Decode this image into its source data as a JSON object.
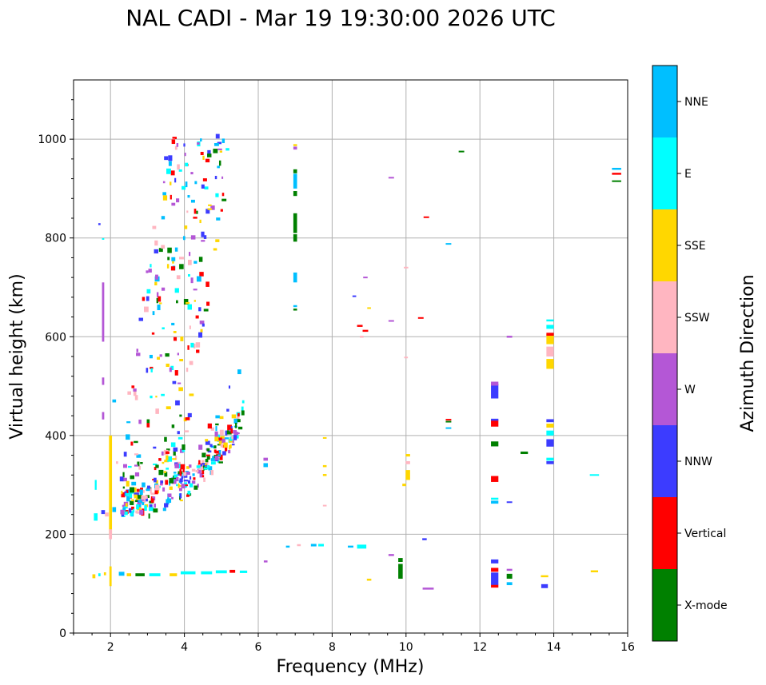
{
  "chart_data": {
    "type": "scatter",
    "title": "NAL CADI - Mar 19 19:30:00 2026 UTC",
    "xlabel": "Frequency (MHz)",
    "ylabel": "Virtual height (km)",
    "xlim": [
      1,
      16
    ],
    "ylim": [
      0,
      1120
    ],
    "xticks": [
      2,
      4,
      6,
      8,
      10,
      12,
      14,
      16
    ],
    "yticks": [
      0,
      200,
      400,
      600,
      800,
      1000
    ],
    "grid": true,
    "colorbar": {
      "label": "Azimuth Direction",
      "categories": [
        {
          "name": "X-mode",
          "color": "#008000"
        },
        {
          "name": "Vertical",
          "color": "#ff0000"
        },
        {
          "name": "NNW",
          "color": "#3c3cff"
        },
        {
          "name": "W",
          "color": "#b457d6"
        },
        {
          "name": "SSW",
          "color": "#ffb6c1"
        },
        {
          "name": "SSE",
          "color": "#ffd700"
        },
        {
          "name": "E",
          "color": "#00ffff"
        },
        {
          "name": "NNE",
          "color": "#00bfff"
        }
      ]
    },
    "points": [
      {
        "f": 1.55,
        "h": 115,
        "c": "SSE",
        "w": 0.08,
        "dh": 8
      },
      {
        "f": 1.7,
        "h": 118,
        "c": "E",
        "w": 0.06,
        "dh": 6
      },
      {
        "f": 1.85,
        "h": 120,
        "c": "SSE",
        "w": 0.06,
        "dh": 6
      },
      {
        "f": 2.0,
        "h": 115,
        "c": "SSE",
        "w": 0.06,
        "dh": 40
      },
      {
        "f": 2.3,
        "h": 120,
        "c": "NNE",
        "w": 0.15,
        "dh": 8
      },
      {
        "f": 2.5,
        "h": 118,
        "c": "SSE",
        "w": 0.12,
        "dh": 6
      },
      {
        "f": 2.8,
        "h": 118,
        "c": "X-mode",
        "w": 0.25,
        "dh": 6
      },
      {
        "f": 3.2,
        "h": 118,
        "c": "E",
        "w": 0.3,
        "dh": 6
      },
      {
        "f": 3.7,
        "h": 118,
        "c": "SSE",
        "w": 0.2,
        "dh": 6
      },
      {
        "f": 4.1,
        "h": 122,
        "c": "E",
        "w": 0.4,
        "dh": 6
      },
      {
        "f": 4.6,
        "h": 122,
        "c": "E",
        "w": 0.3,
        "dh": 6
      },
      {
        "f": 5.0,
        "h": 124,
        "c": "E",
        "w": 0.3,
        "dh": 6
      },
      {
        "f": 5.3,
        "h": 125,
        "c": "Vertical",
        "w": 0.15,
        "dh": 6
      },
      {
        "f": 5.6,
        "h": 124,
        "c": "E",
        "w": 0.2,
        "dh": 5
      },
      {
        "f": 6.2,
        "h": 145,
        "c": "W",
        "w": 0.1,
        "dh": 4
      },
      {
        "f": 6.8,
        "h": 175,
        "c": "NNE",
        "w": 0.1,
        "dh": 4
      },
      {
        "f": 7.1,
        "h": 178,
        "c": "SSW",
        "w": 0.1,
        "dh": 4
      },
      {
        "f": 7.5,
        "h": 178,
        "c": "NNE",
        "w": 0.15,
        "dh": 5
      },
      {
        "f": 7.7,
        "h": 178,
        "c": "E",
        "w": 0.15,
        "dh": 5
      },
      {
        "f": 8.5,
        "h": 175,
        "c": "NNE",
        "w": 0.15,
        "dh": 4
      },
      {
        "f": 8.8,
        "h": 175,
        "c": "E",
        "w": 0.25,
        "dh": 8
      },
      {
        "f": 9.6,
        "h": 158,
        "c": "W",
        "w": 0.15,
        "dh": 4
      },
      {
        "f": 9.0,
        "h": 108,
        "c": "SSE",
        "w": 0.12,
        "dh": 4
      },
      {
        "f": 9.85,
        "h": 125,
        "c": "X-mode",
        "w": 0.12,
        "dh": 30
      },
      {
        "f": 9.85,
        "h": 148,
        "c": "X-mode",
        "w": 0.12,
        "dh": 8
      },
      {
        "f": 10.6,
        "h": 90,
        "c": "W",
        "w": 0.3,
        "dh": 4
      },
      {
        "f": 10.5,
        "h": 190,
        "c": "NNW",
        "w": 0.12,
        "dh": 4
      },
      {
        "f": 12.4,
        "h": 95,
        "c": "Vertical",
        "w": 0.2,
        "dh": 6
      },
      {
        "f": 12.4,
        "h": 110,
        "c": "NNW",
        "w": 0.2,
        "dh": 25
      },
      {
        "f": 12.4,
        "h": 128,
        "c": "Vertical",
        "w": 0.2,
        "dh": 8
      },
      {
        "f": 12.4,
        "h": 145,
        "c": "NNW",
        "w": 0.2,
        "dh": 8
      },
      {
        "f": 12.8,
        "h": 100,
        "c": "NNE",
        "w": 0.15,
        "dh": 6
      },
      {
        "f": 12.8,
        "h": 115,
        "c": "X-mode",
        "w": 0.15,
        "dh": 10
      },
      {
        "f": 12.8,
        "h": 128,
        "c": "W",
        "w": 0.15,
        "dh": 4
      },
      {
        "f": 13.75,
        "h": 95,
        "c": "NNW",
        "w": 0.18,
        "dh": 8
      },
      {
        "f": 13.75,
        "h": 115,
        "c": "SSE",
        "w": 0.2,
        "dh": 4
      },
      {
        "f": 15.1,
        "h": 125,
        "c": "SSE",
        "w": 0.2,
        "dh": 4
      },
      {
        "f": 12.4,
        "h": 265,
        "c": "NNE",
        "w": 0.2,
        "dh": 6
      },
      {
        "f": 12.4,
        "h": 272,
        "c": "E",
        "w": 0.2,
        "dh": 4
      },
      {
        "f": 12.4,
        "h": 312,
        "c": "Vertical",
        "w": 0.2,
        "dh": 12
      },
      {
        "f": 12.4,
        "h": 383,
        "c": "X-mode",
        "w": 0.2,
        "dh": 10
      },
      {
        "f": 12.4,
        "h": 425,
        "c": "Vertical",
        "w": 0.2,
        "dh": 14
      },
      {
        "f": 12.4,
        "h": 432,
        "c": "NNW",
        "w": 0.2,
        "dh": 4
      },
      {
        "f": 12.4,
        "h": 490,
        "c": "NNW",
        "w": 0.2,
        "dh": 30
      },
      {
        "f": 12.4,
        "h": 505,
        "c": "W",
        "w": 0.2,
        "dh": 8
      },
      {
        "f": 12.8,
        "h": 265,
        "c": "NNW",
        "w": 0.15,
        "dh": 3
      },
      {
        "f": 12.8,
        "h": 600,
        "c": "W",
        "w": 0.15,
        "dh": 4
      },
      {
        "f": 13.2,
        "h": 365,
        "c": "X-mode",
        "w": 0.2,
        "dh": 5
      },
      {
        "f": 13.9,
        "h": 345,
        "c": "NNW",
        "w": 0.2,
        "dh": 6
      },
      {
        "f": 13.9,
        "h": 352,
        "c": "E",
        "w": 0.2,
        "dh": 6
      },
      {
        "f": 13.9,
        "h": 385,
        "c": "NNW",
        "w": 0.2,
        "dh": 15
      },
      {
        "f": 13.9,
        "h": 405,
        "c": "E",
        "w": 0.2,
        "dh": 10
      },
      {
        "f": 13.9,
        "h": 420,
        "c": "SSE",
        "w": 0.2,
        "dh": 8
      },
      {
        "f": 13.9,
        "h": 430,
        "c": "NNW",
        "w": 0.2,
        "dh": 6
      },
      {
        "f": 13.9,
        "h": 545,
        "c": "SSE",
        "w": 0.2,
        "dh": 20
      },
      {
        "f": 13.9,
        "h": 570,
        "c": "SSW",
        "w": 0.2,
        "dh": 20
      },
      {
        "f": 13.9,
        "h": 595,
        "c": "SSE",
        "w": 0.2,
        "dh": 20
      },
      {
        "f": 13.9,
        "h": 605,
        "c": "Vertical",
        "w": 0.2,
        "dh": 6
      },
      {
        "f": 13.9,
        "h": 620,
        "c": "E",
        "w": 0.2,
        "dh": 8
      },
      {
        "f": 13.9,
        "h": 633,
        "c": "E",
        "w": 0.2,
        "dh": 4
      },
      {
        "f": 15.1,
        "h": 320,
        "c": "E",
        "w": 0.25,
        "dh": 3
      },
      {
        "f": 15.7,
        "h": 915,
        "c": "X-mode",
        "w": 0.25,
        "dh": 3
      },
      {
        "f": 15.7,
        "h": 930,
        "c": "Vertical",
        "w": 0.25,
        "dh": 4
      },
      {
        "f": 15.7,
        "h": 940,
        "c": "NNE",
        "w": 0.25,
        "dh": 4
      },
      {
        "f": 7.0,
        "h": 655,
        "c": "X-mode",
        "w": 0.1,
        "dh": 4
      },
      {
        "f": 7.0,
        "h": 662,
        "c": "NNE",
        "w": 0.1,
        "dh": 4
      },
      {
        "f": 7.0,
        "h": 720,
        "c": "NNE",
        "w": 0.1,
        "dh": 20
      },
      {
        "f": 7.0,
        "h": 800,
        "c": "X-mode",
        "w": 0.1,
        "dh": 15
      },
      {
        "f": 7.0,
        "h": 830,
        "c": "X-mode",
        "w": 0.1,
        "dh": 40
      },
      {
        "f": 7.0,
        "h": 890,
        "c": "X-mode",
        "w": 0.1,
        "dh": 10
      },
      {
        "f": 7.0,
        "h": 915,
        "c": "NNE",
        "w": 0.1,
        "dh": 30
      },
      {
        "f": 7.0,
        "h": 935,
        "c": "X-mode",
        "w": 0.1,
        "dh": 8
      },
      {
        "f": 7.0,
        "h": 982,
        "c": "W",
        "w": 0.1,
        "dh": 6
      },
      {
        "f": 7.0,
        "h": 988,
        "c": "SSE",
        "w": 0.1,
        "dh": 4
      },
      {
        "f": 6.2,
        "h": 340,
        "c": "NNE",
        "w": 0.12,
        "dh": 8
      },
      {
        "f": 6.2,
        "h": 352,
        "c": "W",
        "w": 0.12,
        "dh": 6
      },
      {
        "f": 7.8,
        "h": 320,
        "c": "SSE",
        "w": 0.1,
        "dh": 4
      },
      {
        "f": 7.8,
        "h": 338,
        "c": "SSE",
        "w": 0.1,
        "dh": 4
      },
      {
        "f": 7.8,
        "h": 258,
        "c": "SSW",
        "w": 0.1,
        "dh": 3
      },
      {
        "f": 7.8,
        "h": 395,
        "c": "SSE",
        "w": 0.1,
        "dh": 3
      },
      {
        "f": 8.8,
        "h": 600,
        "c": "SSW",
        "w": 0.1,
        "dh": 4
      },
      {
        "f": 8.9,
        "h": 612,
        "c": "Vertical",
        "w": 0.15,
        "dh": 4
      },
      {
        "f": 8.75,
        "h": 622,
        "c": "Vertical",
        "w": 0.15,
        "dh": 4
      },
      {
        "f": 9.0,
        "h": 658,
        "c": "SSE",
        "w": 0.1,
        "dh": 3
      },
      {
        "f": 8.9,
        "h": 720,
        "c": "W",
        "w": 0.12,
        "dh": 3
      },
      {
        "f": 8.6,
        "h": 682,
        "c": "NNW",
        "w": 0.1,
        "dh": 3
      },
      {
        "f": 9.6,
        "h": 632,
        "c": "W",
        "w": 0.15,
        "dh": 3
      },
      {
        "f": 9.6,
        "h": 922,
        "c": "W",
        "w": 0.15,
        "dh": 3
      },
      {
        "f": 10.4,
        "h": 638,
        "c": "Vertical",
        "w": 0.15,
        "dh": 3
      },
      {
        "f": 10.0,
        "h": 740,
        "c": "SSW",
        "w": 0.12,
        "dh": 3
      },
      {
        "f": 10.0,
        "h": 558,
        "c": "SSW",
        "w": 0.1,
        "dh": 3
      },
      {
        "f": 10.55,
        "h": 842,
        "c": "Vertical",
        "w": 0.15,
        "dh": 3
      },
      {
        "f": 11.15,
        "h": 788,
        "c": "NNE",
        "w": 0.15,
        "dh": 3
      },
      {
        "f": 11.5,
        "h": 975,
        "c": "X-mode",
        "w": 0.15,
        "dh": 3
      },
      {
        "f": 11.15,
        "h": 415,
        "c": "NNE",
        "w": 0.15,
        "dh": 3
      },
      {
        "f": 11.15,
        "h": 428,
        "c": "X-mode",
        "w": 0.15,
        "dh": 3
      },
      {
        "f": 11.15,
        "h": 432,
        "c": "Vertical",
        "w": 0.15,
        "dh": 3
      },
      {
        "f": 9.95,
        "h": 300,
        "c": "SSE",
        "w": 0.1,
        "dh": 5
      },
      {
        "f": 10.05,
        "h": 320,
        "c": "SSE",
        "w": 0.12,
        "dh": 20
      },
      {
        "f": 10.05,
        "h": 345,
        "c": "SSW",
        "w": 0.12,
        "dh": 6
      },
      {
        "f": 10.05,
        "h": 360,
        "c": "SSE",
        "w": 0.12,
        "dh": 5
      },
      {
        "f": 1.8,
        "h": 650,
        "c": "W",
        "w": 0.06,
        "dh": 120
      },
      {
        "f": 1.8,
        "h": 510,
        "c": "W",
        "w": 0.06,
        "dh": 15
      },
      {
        "f": 1.8,
        "h": 440,
        "c": "W",
        "w": 0.06,
        "dh": 15
      },
      {
        "f": 1.7,
        "h": 828,
        "c": "NNW",
        "w": 0.06,
        "dh": 4
      },
      {
        "f": 1.8,
        "h": 798,
        "c": "E",
        "w": 0.06,
        "dh": 3
      },
      {
        "f": 2.0,
        "h": 300,
        "c": "SSE",
        "w": 0.08,
        "dh": 200
      },
      {
        "f": 2.0,
        "h": 200,
        "c": "SSW",
        "w": 0.08,
        "dh": 20
      },
      {
        "f": 1.6,
        "h": 235,
        "c": "E",
        "w": 0.1,
        "dh": 15
      },
      {
        "f": 1.8,
        "h": 245,
        "c": "NNW",
        "w": 0.1,
        "dh": 8
      },
      {
        "f": 1.9,
        "h": 240,
        "c": "SSW",
        "w": 0.1,
        "dh": 8
      },
      {
        "f": 2.1,
        "h": 250,
        "c": "NNE",
        "w": 0.1,
        "dh": 10
      },
      {
        "f": 1.6,
        "h": 300,
        "c": "E",
        "w": 0.05,
        "dh": 20
      },
      {
        "f": 2.1,
        "h": 470,
        "c": "NNE",
        "w": 0.1,
        "dh": 6
      }
    ],
    "clusters": [
      {
        "f0": 2.3,
        "f1": 5.6,
        "h0": 225,
        "h1": 470,
        "count": 300,
        "cats": [
          "NNE",
          "E",
          "X-mode",
          "Vertical",
          "SSE",
          "NNW",
          "SSW",
          "W"
        ]
      },
      {
        "f0": 2.4,
        "f1": 5.2,
        "h0": 300,
        "h1": 1010,
        "count": 220,
        "cats": [
          "Vertical",
          "E",
          "X-mode",
          "NNE",
          "SSE",
          "SSW",
          "NNW",
          "W"
        ]
      }
    ]
  }
}
